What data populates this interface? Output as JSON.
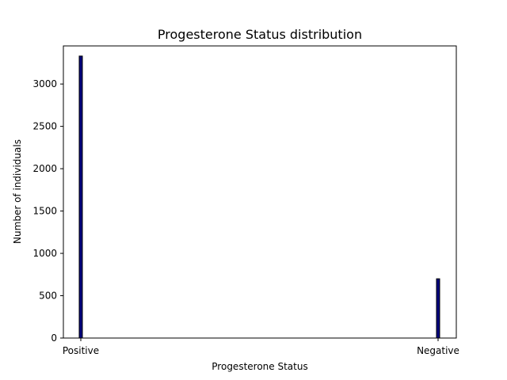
{
  "chart_data": {
    "type": "bar",
    "title": "Progesterone Status distribution",
    "xlabel": "Progesterone Status",
    "ylabel": "Number of individuals",
    "categories": [
      "Positive",
      "Negative"
    ],
    "values": [
      3330,
      700
    ],
    "ylim": [
      0,
      3450
    ],
    "yticks": [
      0,
      500,
      1000,
      1500,
      2000,
      2500,
      3000
    ],
    "bar_color": "#00007f",
    "edge_color": "#000000",
    "grid": false,
    "legend": "none"
  }
}
